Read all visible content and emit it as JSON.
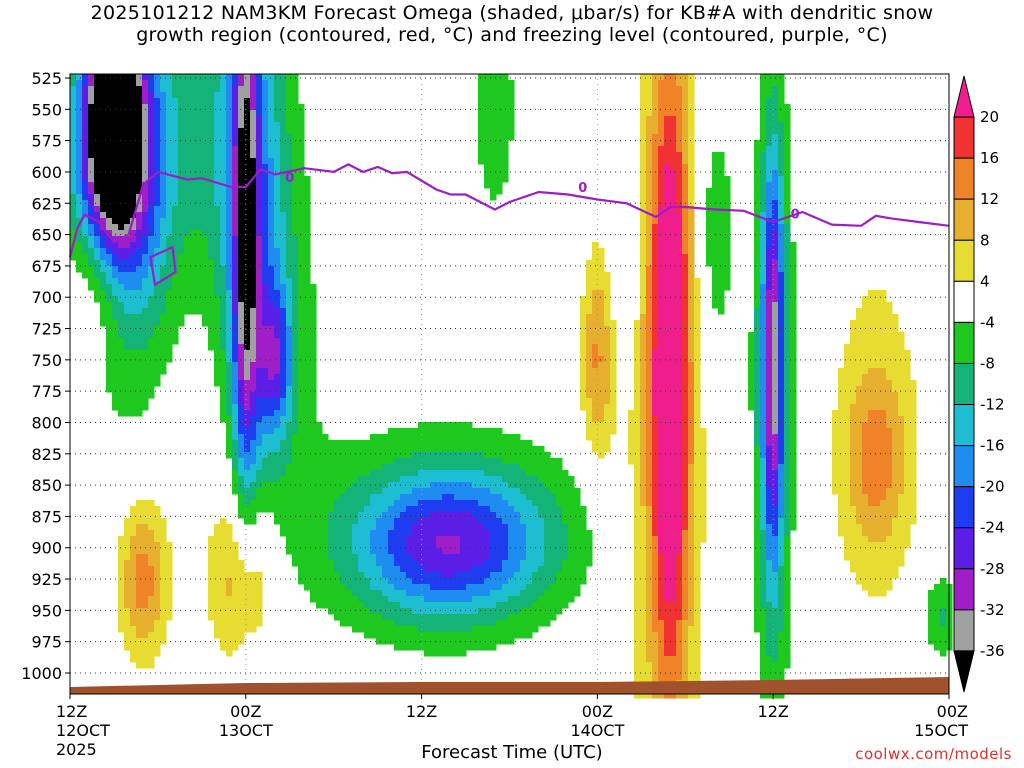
{
  "chart_data": {
    "type": "heatmap",
    "title_line1": "2025101212 NAM3KM Forecast Omega (shaded, μbar/s) for KB#A with dendritic snow",
    "title_line2": "growth region (contoured, red, °C) and freezing level (contoured, purple, °C)",
    "xlabel": "Forecast Time (UTC)",
    "ylabel": "",
    "credit": "coolwx.com/models",
    "y_axis": {
      "unit": "hPa",
      "range": [
        525,
        1000
      ],
      "ticks": [
        525,
        550,
        575,
        600,
        625,
        650,
        675,
        700,
        725,
        750,
        775,
        800,
        825,
        850,
        875,
        900,
        925,
        950,
        975,
        1000
      ]
    },
    "x_axis": {
      "unit": "forecast hour",
      "range": [
        0,
        60
      ],
      "ticks": [
        {
          "hour": 0,
          "time": "12Z",
          "date": "12OCT",
          "year": "2025"
        },
        {
          "hour": 12,
          "time": "00Z",
          "date": "13OCT",
          "year": ""
        },
        {
          "hour": 24,
          "time": "12Z",
          "date": "",
          "year": ""
        },
        {
          "hour": 36,
          "time": "00Z",
          "date": "14OCT",
          "year": ""
        },
        {
          "hour": 48,
          "time": "12Z",
          "date": "",
          "year": ""
        },
        {
          "hour": 60,
          "time": "00Z",
          "date": "15OCT",
          "year": ""
        }
      ]
    },
    "colorbar": {
      "labels": [
        20,
        16,
        12,
        8,
        4,
        -4,
        -8,
        -12,
        -16,
        -20,
        -24,
        -28,
        -32,
        -36
      ],
      "colors": [
        "#f01e8c",
        "#f03232",
        "#f08228",
        "#e6af2d",
        "#e6dc32",
        "#ffffff",
        "#1ec81e",
        "#14b478",
        "#1ebed2",
        "#1e8cf0",
        "#1e3cf0",
        "#5a1ee6",
        "#a01ec8",
        "#a0a0a0",
        "#000000"
      ]
    },
    "freezing_level": {
      "label": "0",
      "color": "#9b1ec8",
      "points": [
        [
          0.0,
          668
        ],
        [
          0.5,
          645
        ],
        [
          1.0,
          634
        ],
        [
          2.0,
          640
        ],
        [
          3.0,
          656
        ],
        [
          4.0,
          650
        ],
        [
          5.0,
          610
        ],
        [
          6.0,
          600
        ],
        [
          8.0,
          606
        ],
        [
          9.0,
          605
        ],
        [
          11.0,
          612
        ],
        [
          12.0,
          612
        ],
        [
          13.0,
          598
        ],
        [
          14.0,
          602
        ],
        [
          16.0,
          597
        ],
        [
          18.0,
          600
        ],
        [
          19.0,
          594
        ],
        [
          20.0,
          600
        ],
        [
          21.0,
          596
        ],
        [
          22.0,
          601
        ],
        [
          23.0,
          600
        ],
        [
          25.0,
          614
        ],
        [
          26.0,
          618
        ],
        [
          27.0,
          618
        ],
        [
          29.0,
          630
        ],
        [
          30.0,
          624
        ],
        [
          32.0,
          616
        ],
        [
          34.0,
          618
        ],
        [
          36.0,
          622
        ],
        [
          38.0,
          625
        ],
        [
          40.0,
          636
        ],
        [
          41.0,
          628
        ],
        [
          42.0,
          628
        ],
        [
          44.0,
          630
        ],
        [
          46.0,
          631
        ],
        [
          48.0,
          640
        ],
        [
          50.0,
          632
        ],
        [
          52.0,
          642
        ],
        [
          54.0,
          643
        ],
        [
          55.0,
          635
        ],
        [
          56.0,
          637
        ],
        [
          58.0,
          640
        ],
        [
          60.0,
          643
        ]
      ]
    },
    "terrain_color": "#a0522d",
    "omega_features": [
      {
        "t": 3.0,
        "p": 555,
        "v": -36,
        "st": 1.0,
        "sp": 45
      },
      {
        "t": 3.2,
        "p": 580,
        "v": -30,
        "st": 1.8,
        "sp": 75
      },
      {
        "t": 3.5,
        "p": 620,
        "v": -16,
        "st": 2.6,
        "sp": 110
      },
      {
        "t": 12.0,
        "p": 650,
        "v": -24,
        "st": 0.6,
        "sp": 150
      },
      {
        "t": 12.5,
        "p": 650,
        "v": -12,
        "st": 1.6,
        "sp": 200
      },
      {
        "t": 14.0,
        "p": 750,
        "v": -16,
        "st": 0.8,
        "sp": 40
      },
      {
        "t": 13.5,
        "p": 740,
        "v": -8,
        "st": 2.5,
        "sp": 120
      },
      {
        "t": 10.0,
        "p": 560,
        "v": -8,
        "st": 3.0,
        "sp": 80
      },
      {
        "t": 2.0,
        "p": 690,
        "v": 12,
        "st": 1.6,
        "sp": 50
      },
      {
        "t": 5.0,
        "p": 925,
        "v": 14,
        "st": 1.2,
        "sp": 45
      },
      {
        "t": 12.0,
        "p": 925,
        "v": 12,
        "st": 1.5,
        "sp": 50
      },
      {
        "t": 11.5,
        "p": 870,
        "v": 6,
        "st": 2.5,
        "sp": 90
      },
      {
        "t": 25.0,
        "p": 900,
        "v": -16,
        "st": 4.0,
        "sp": 40
      },
      {
        "t": 25.0,
        "p": 885,
        "v": -8,
        "st": 7.0,
        "sp": 60
      },
      {
        "t": 29.0,
        "p": 895,
        "v": -7,
        "st": 4.0,
        "sp": 40
      },
      {
        "t": 36.0,
        "p": 750,
        "v": 12,
        "st": 0.8,
        "sp": 60
      },
      {
        "t": 41.0,
        "p": 770,
        "v": 22,
        "st": 0.9,
        "sp": 170
      },
      {
        "t": 40.5,
        "p": 770,
        "v": 10,
        "st": 2.0,
        "sp": 240
      },
      {
        "t": 44.0,
        "p": 650,
        "v": -8,
        "st": 1.0,
        "sp": 80
      },
      {
        "t": 48.0,
        "p": 750,
        "v": -24,
        "st": 0.5,
        "sp": 110
      },
      {
        "t": 48.0,
        "p": 780,
        "v": -12,
        "st": 1.0,
        "sp": 180
      },
      {
        "t": 55.0,
        "p": 830,
        "v": 10,
        "st": 1.5,
        "sp": 50
      },
      {
        "t": 55.0,
        "p": 800,
        "v": 5,
        "st": 2.5,
        "sp": 140
      },
      {
        "t": 59.5,
        "p": 955,
        "v": -9,
        "st": 1.0,
        "sp": 25
      },
      {
        "t": 29.0,
        "p": 550,
        "v": -8,
        "st": 1.0,
        "sp": 60
      },
      {
        "t": 38.0,
        "p": 650,
        "v": -7,
        "st": 0.8,
        "sp": 80
      }
    ]
  }
}
